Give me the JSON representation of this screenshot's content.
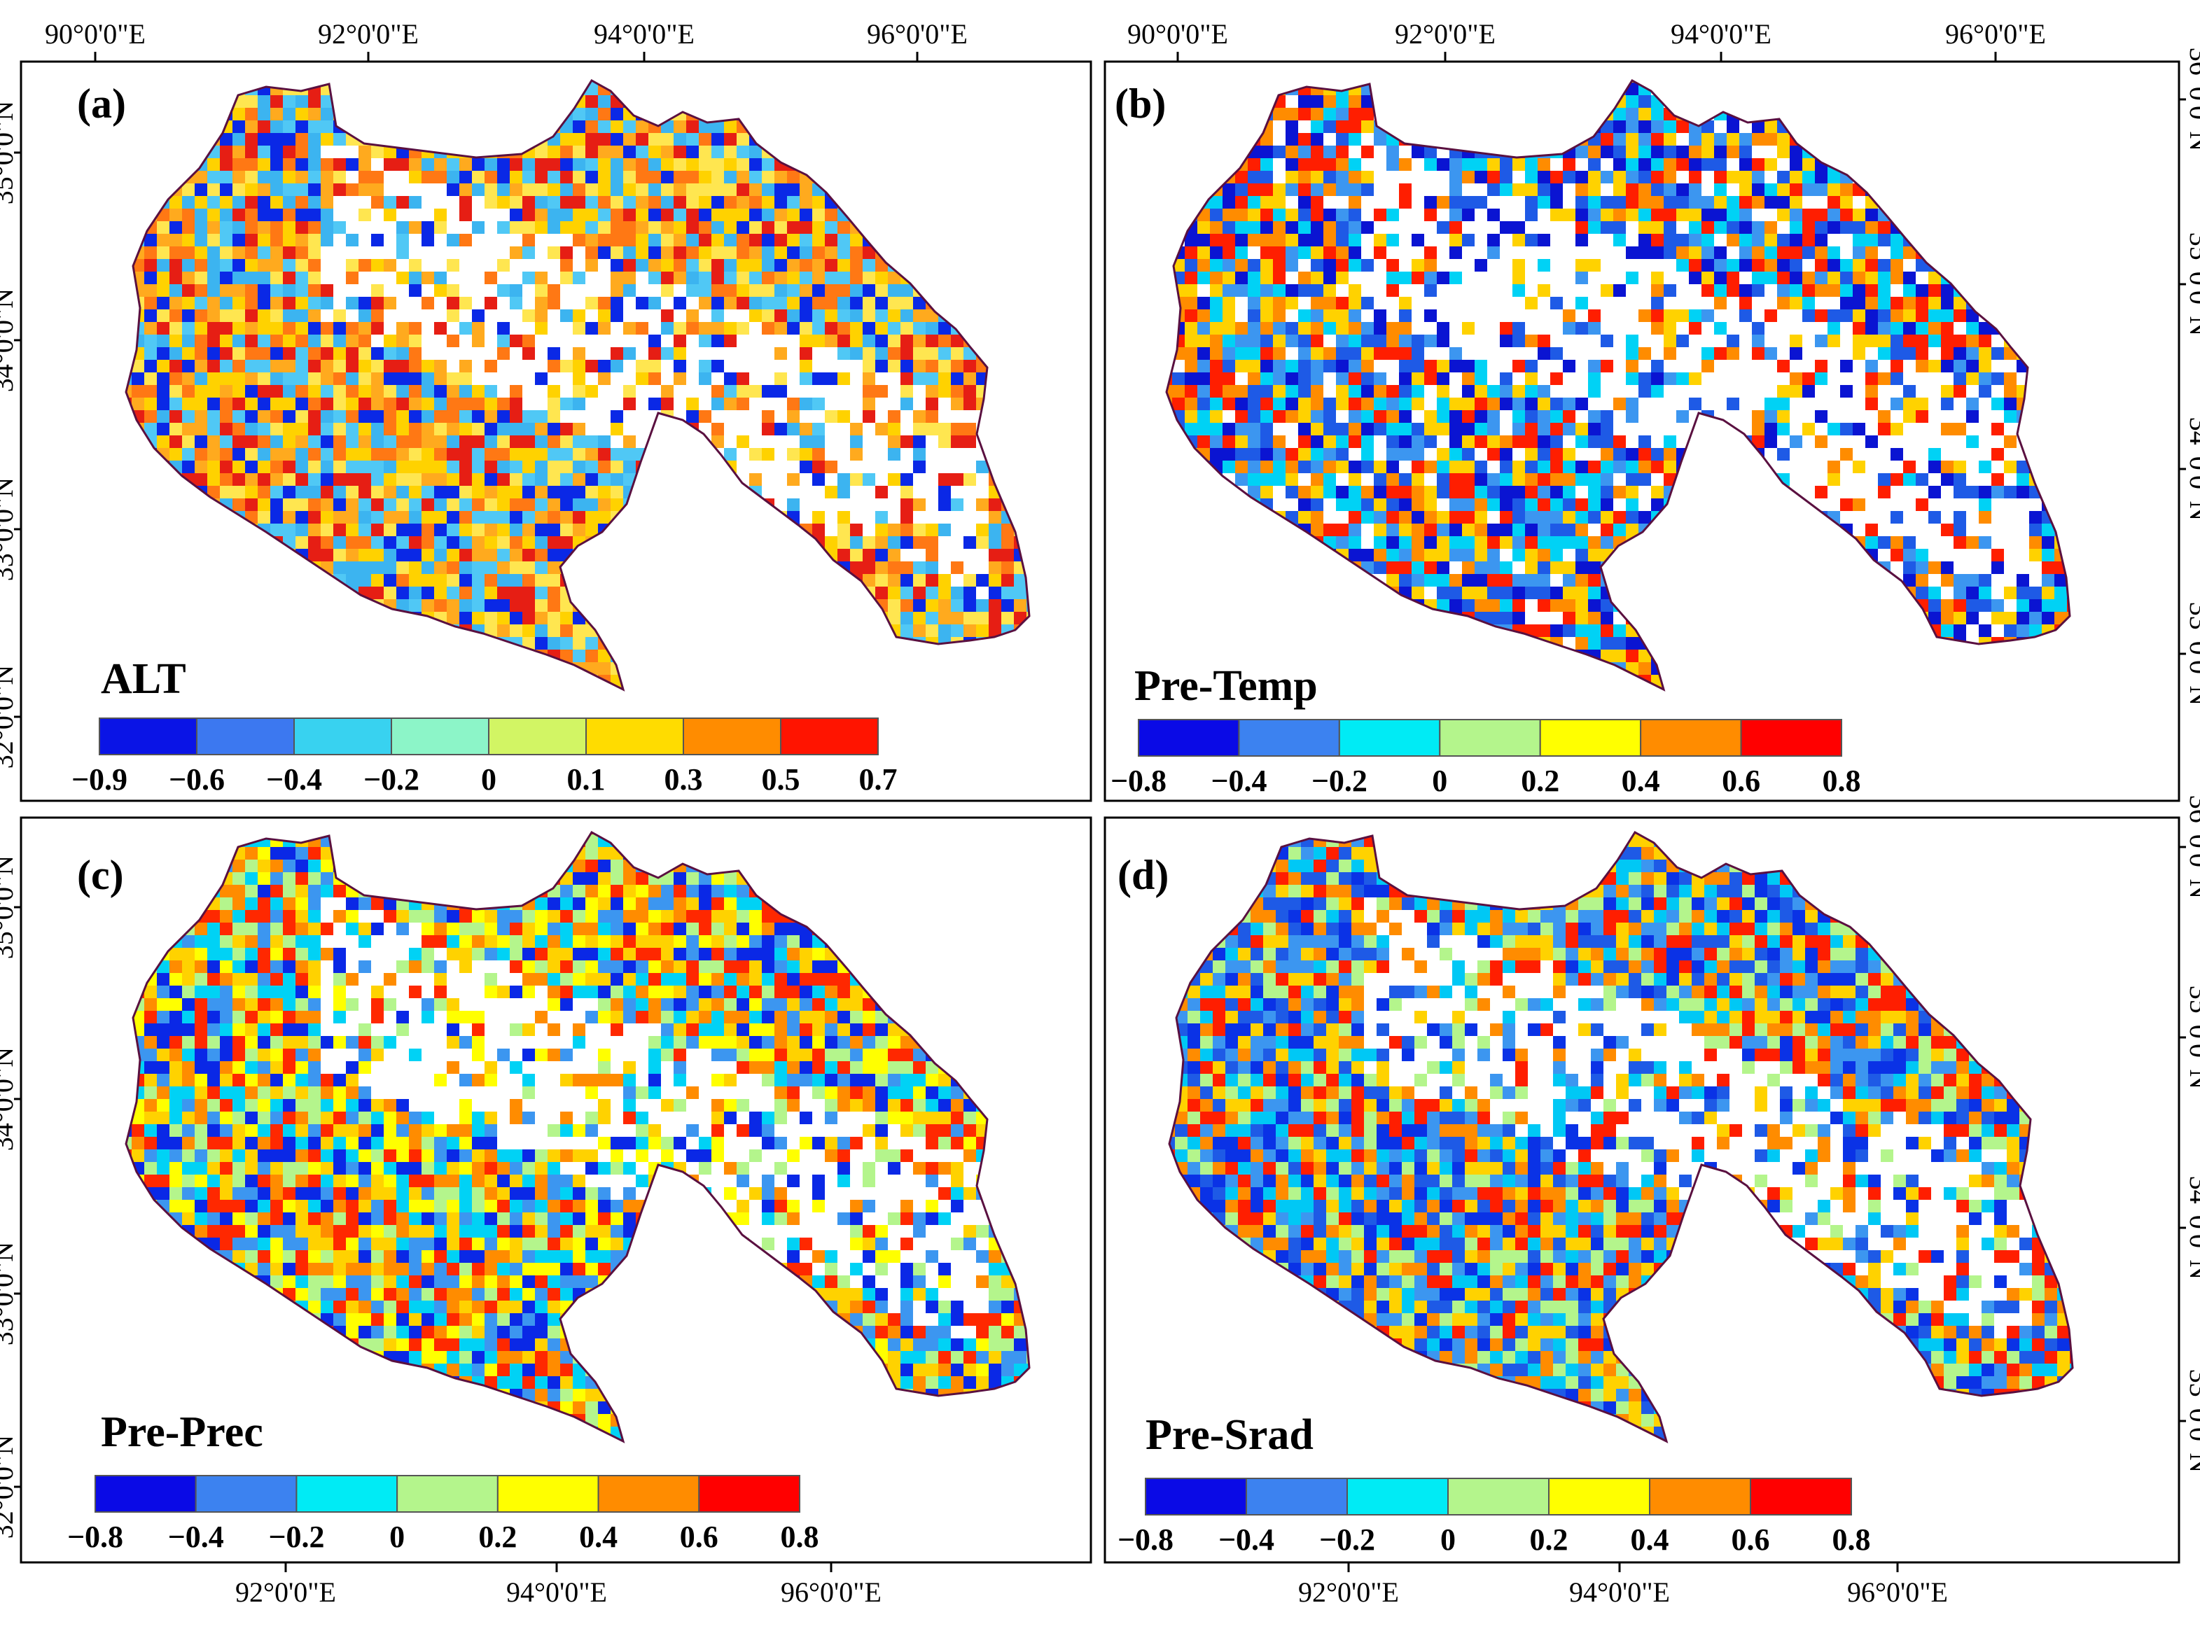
{
  "panels": [
    {
      "label": "(a)",
      "variable": "ALT",
      "top_ticks": [
        "90°0'0\"E",
        "92°0'0\"E",
        "94°0'0\"E",
        "96°0'0\"E"
      ],
      "bottom_ticks": [],
      "left_ticks": [
        "35°0'0\"N",
        "34°0'0\"N",
        "33°0'0\"N",
        "32°0'0\"N"
      ],
      "right_ticks": [],
      "colorbar": {
        "colors": [
          "#0a14e6",
          "#3c78f0",
          "#38d2f0",
          "#8cf5c8",
          "#d2f564",
          "#ffdc00",
          "#ff8c00",
          "#ff1400"
        ],
        "labels": [
          "−0.9",
          "−0.6",
          "−0.4",
          "−0.2",
          "0",
          "0.1",
          "0.3",
          "0.5",
          "0.7"
        ]
      }
    },
    {
      "label": "(b)",
      "variable": "Pre-Temp",
      "top_ticks": [
        "90°0'0\"E",
        "92°0'0\"E",
        "94°0'0\"E",
        "96°0'0\"E"
      ],
      "bottom_ticks": [],
      "left_ticks": [],
      "right_ticks": [
        "36°0'0\"N",
        "35°0'0\"N",
        "34°0'0\"N",
        "33°0'0\"N"
      ],
      "colorbar": {
        "colors": [
          "#0a0ae6",
          "#3c82f0",
          "#00ebf5",
          "#b4f58c",
          "#ffff00",
          "#ff8c00",
          "#ff0000"
        ],
        "labels": [
          "−0.8",
          "−0.4",
          "−0.2",
          "0",
          "0.2",
          "0.4",
          "0.6",
          "0.8"
        ]
      }
    },
    {
      "label": "(c)",
      "variable": "Pre-Prec",
      "top_ticks": [],
      "bottom_ticks": [
        "92°0'0\"E",
        "94°0'0\"E",
        "96°0'0\"E"
      ],
      "left_ticks": [
        "35°0'0\"N",
        "34°0'0\"N",
        "33°0'0\"N",
        "32°0'0\"N"
      ],
      "right_ticks": [],
      "colorbar": {
        "colors": [
          "#0a0ae6",
          "#3c82f0",
          "#00ebf5",
          "#b4f58c",
          "#ffff00",
          "#ff8c00",
          "#ff0000"
        ],
        "labels": [
          "−0.8",
          "−0.4",
          "−0.2",
          "0",
          "0.2",
          "0.4",
          "0.6",
          "0.8"
        ]
      }
    },
    {
      "label": "(d)",
      "variable": "Pre-Srad",
      "top_ticks": [],
      "bottom_ticks": [
        "92°0'0\"E",
        "94°0'0\"E",
        "96°0'0\"E"
      ],
      "left_ticks": [],
      "right_ticks": [
        "36°0'0\"N",
        "35°0'0\"N",
        "34°0'0\"N",
        "33°0'0\"N"
      ],
      "colorbar": {
        "colors": [
          "#0a0ae6",
          "#3c82f0",
          "#00ebf5",
          "#b4f58c",
          "#ffff00",
          "#ff8c00",
          "#ff0000"
        ],
        "labels": [
          "−0.8",
          "−0.4",
          "−0.2",
          "0",
          "0.2",
          "0.4",
          "0.6",
          "0.8"
        ]
      }
    }
  ],
  "map_colors": {
    "boundary": "#5a1040",
    "a": [
      "#ffaa1e",
      "#ffd200",
      "#ff7814",
      "#3cb4f0",
      "#50c8f5",
      "#ffe650",
      "#e61e14",
      "#0a28e6",
      "#ffffff"
    ],
    "b": [
      "#3c96f0",
      "#1e5ae6",
      "#0a14d2",
      "#00d2f5",
      "#ffd200",
      "#ff8c00",
      "#ff1e00",
      "#ffffff",
      "#b4f58c"
    ],
    "c": [
      "#ffd200",
      "#ffff00",
      "#ff8c00",
      "#3c96f0",
      "#00d2f5",
      "#ff2800",
      "#0a28e6",
      "#b4f58c",
      "#ffffff"
    ],
    "d": [
      "#3c96f0",
      "#0a32e6",
      "#00c8f5",
      "#1e5ae6",
      "#b4f58c",
      "#ffd200",
      "#ff8c00",
      "#ff1e00",
      "#ffffff"
    ]
  }
}
